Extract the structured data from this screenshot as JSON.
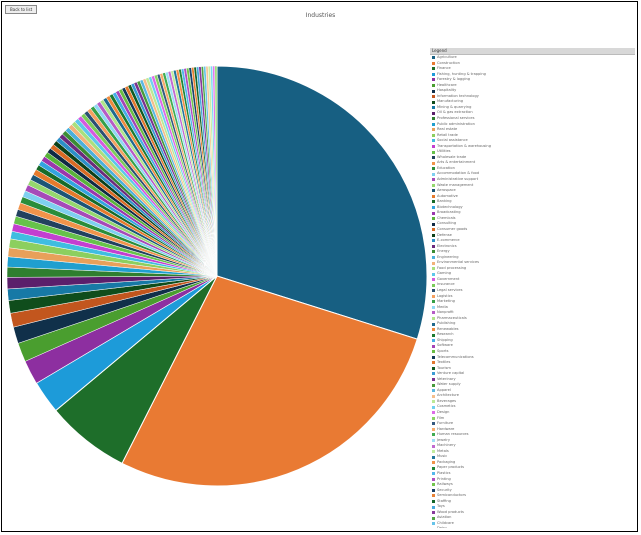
{
  "toolbar": {
    "button_label": "Back to list"
  },
  "chart_data": {
    "type": "pie",
    "title": "Industries",
    "legend_title": "Legend",
    "legend_position": "right",
    "start_angle_deg": 0,
    "direction": "clockwise",
    "series": [
      {
        "label": "Agriculture",
        "value": 30.5,
        "color": "#175f82"
      },
      {
        "label": "Construction",
        "value": 28.2,
        "color": "#e97a33"
      },
      {
        "label": "Finance",
        "value": 6.6,
        "color": "#1e6e2a"
      },
      {
        "label": "Fishing, hunting & trapping",
        "value": 2.6,
        "color": "#1d9bd9"
      },
      {
        "label": "Forestry & logging",
        "value": 1.9,
        "color": "#8d2fa0"
      },
      {
        "label": "Healthcare",
        "value": 1.5,
        "color": "#4a9e2f"
      },
      {
        "label": "Hospitality",
        "value": 1.3,
        "color": "#10304a"
      },
      {
        "label": "Information technology",
        "value": 1.1,
        "color": "#c2561e"
      },
      {
        "label": "Manufacturing",
        "value": 1.0,
        "color": "#0f4d1c"
      },
      {
        "label": "Mining & quarrying",
        "value": 0.9,
        "color": "#1779a6"
      },
      {
        "label": "Oil & gas extraction",
        "value": 0.9,
        "color": "#5b1f6b"
      },
      {
        "label": "Professional services",
        "value": 0.8,
        "color": "#2f7f2f"
      },
      {
        "label": "Public administration",
        "value": 0.8,
        "color": "#1f9fcf"
      },
      {
        "label": "Real estate",
        "value": 0.7,
        "color": "#e8a05a"
      },
      {
        "label": "Retail trade",
        "value": 0.7,
        "color": "#8ccf5f"
      },
      {
        "label": "Social assistance",
        "value": 0.6,
        "color": "#3fbde0"
      },
      {
        "label": "Transportation & warehousing",
        "value": 0.6,
        "color": "#c33fd0"
      },
      {
        "label": "Utilities",
        "value": 0.6,
        "color": "#66c24a"
      },
      {
        "label": "Wholesale trade",
        "value": 0.55,
        "color": "#22415f"
      },
      {
        "label": "Arts & entertainment",
        "value": 0.55,
        "color": "#f0934a"
      },
      {
        "label": "Education",
        "value": 0.5,
        "color": "#2a8d3a"
      },
      {
        "label": "Accommodation & food",
        "value": 0.5,
        "color": "#7ed0f0"
      },
      {
        "label": "Administrative support",
        "value": 0.5,
        "color": "#a64ab8"
      },
      {
        "label": "Waste management",
        "value": 0.45,
        "color": "#95d86e"
      },
      {
        "label": "Aerospace",
        "value": 0.45,
        "color": "#1b5576"
      },
      {
        "label": "Automotive",
        "value": 0.45,
        "color": "#e57a2c"
      },
      {
        "label": "Banking",
        "value": 0.4,
        "color": "#176b29"
      },
      {
        "label": "Biotechnology",
        "value": 0.4,
        "color": "#33a4e0"
      },
      {
        "label": "Broadcasting",
        "value": 0.4,
        "color": "#9b36ad"
      },
      {
        "label": "Chemicals",
        "value": 0.4,
        "color": "#59b33a"
      },
      {
        "label": "Consulting",
        "value": 0.38,
        "color": "#0f2a44"
      },
      {
        "label": "Consumer goods",
        "value": 0.38,
        "color": "#d96a24"
      },
      {
        "label": "Defense",
        "value": 0.36,
        "color": "#0c4018"
      },
      {
        "label": "E-commerce",
        "value": 0.36,
        "color": "#2c90c8"
      },
      {
        "label": "Electronics",
        "value": 0.35,
        "color": "#6b2a7d"
      },
      {
        "label": "Energy",
        "value": 0.35,
        "color": "#3a8c34"
      },
      {
        "label": "Engineering",
        "value": 0.34,
        "color": "#4bb0dc"
      },
      {
        "label": "Environmental services",
        "value": 0.34,
        "color": "#f2b27a"
      },
      {
        "label": "Food processing",
        "value": 0.33,
        "color": "#a8e07e"
      },
      {
        "label": "Gaming",
        "value": 0.33,
        "color": "#5cc8ea"
      },
      {
        "label": "Government",
        "value": 0.32,
        "color": "#d45ae0"
      },
      {
        "label": "Insurance",
        "value": 0.32,
        "color": "#7ccc5a"
      },
      {
        "label": "Legal services",
        "value": 0.31,
        "color": "#2b4f72"
      },
      {
        "label": "Logistics",
        "value": 0.31,
        "color": "#f5a060"
      },
      {
        "label": "Marketing",
        "value": 0.3,
        "color": "#35a047"
      },
      {
        "label": "Media",
        "value": 0.3,
        "color": "#8fd8f4"
      },
      {
        "label": "Nonprofit",
        "value": 0.3,
        "color": "#b65cc6"
      },
      {
        "label": "Pharmaceuticals",
        "value": 0.29,
        "color": "#b0e68a"
      },
      {
        "label": "Publishing",
        "value": 0.29,
        "color": "#1f6a8e"
      },
      {
        "label": "Renewables",
        "value": 0.28,
        "color": "#ee8a3e"
      },
      {
        "label": "Research",
        "value": 0.28,
        "color": "#1c7a30"
      },
      {
        "label": "Shipping",
        "value": 0.28,
        "color": "#45aee6"
      },
      {
        "label": "Software",
        "value": 0.27,
        "color": "#a544b6"
      },
      {
        "label": "Sports",
        "value": 0.27,
        "color": "#6abd44"
      },
      {
        "label": "Telecommunications",
        "value": 0.26,
        "color": "#14385a"
      },
      {
        "label": "Textiles",
        "value": 0.26,
        "color": "#e2772e"
      },
      {
        "label": "Tourism",
        "value": 0.26,
        "color": "#105a22"
      },
      {
        "label": "Venture capital",
        "value": 0.25,
        "color": "#3b9cd4"
      },
      {
        "label": "Veterinary",
        "value": 0.25,
        "color": "#7b3290"
      },
      {
        "label": "Water supply",
        "value": 0.25,
        "color": "#489a3c"
      },
      {
        "label": "Apparel",
        "value": 0.24,
        "color": "#5ab8e2"
      },
      {
        "label": "Architecture",
        "value": 0.24,
        "color": "#f4be8c"
      },
      {
        "label": "Beverages",
        "value": 0.24,
        "color": "#bbe996"
      },
      {
        "label": "Cosmetics",
        "value": 0.23,
        "color": "#6fd0ef"
      },
      {
        "label": "Design",
        "value": 0.23,
        "color": "#dd6ae8"
      },
      {
        "label": "Film",
        "value": 0.23,
        "color": "#88d466"
      },
      {
        "label": "Furniture",
        "value": 0.22,
        "color": "#345a80"
      },
      {
        "label": "Hardware",
        "value": 0.22,
        "color": "#f7ab6c"
      },
      {
        "label": "Human resources",
        "value": 0.22,
        "color": "#40ac52"
      },
      {
        "label": "Jewelry",
        "value": 0.22,
        "color": "#9ddff6"
      },
      {
        "label": "Machinery",
        "value": 0.21,
        "color": "#c16ad0"
      },
      {
        "label": "Metals",
        "value": 0.21,
        "color": "#c2ec9e"
      },
      {
        "label": "Music",
        "value": 0.21,
        "color": "#22769c"
      },
      {
        "label": "Packaging",
        "value": 0.21,
        "color": "#f19248"
      },
      {
        "label": "Paper products",
        "value": 0.2,
        "color": "#208638"
      },
      {
        "label": "Plastics",
        "value": 0.2,
        "color": "#52b8ec"
      },
      {
        "label": "Printing",
        "value": 0.2,
        "color": "#b04ec0"
      },
      {
        "label": "Railways",
        "value": 0.2,
        "color": "#74c64e"
      },
      {
        "label": "Security",
        "value": 0.2,
        "color": "#1a4268"
      },
      {
        "label": "Semiconductors",
        "value": 0.19,
        "color": "#e88236"
      },
      {
        "label": "Staffing",
        "value": 0.19,
        "color": "#136628"
      },
      {
        "label": "Toys",
        "value": 0.19,
        "color": "#48a8dc"
      },
      {
        "label": "Wood products",
        "value": 0.19,
        "color": "#883a9c"
      },
      {
        "label": "Aviation",
        "value": 0.18,
        "color": "#52a646"
      },
      {
        "label": "Childcare",
        "value": 0.18,
        "color": "#66c4ea"
      },
      {
        "label": "Dairy",
        "value": 0.18,
        "color": "#f6c89a"
      },
      {
        "label": "Fitness",
        "value": 0.18,
        "color": "#c8efa6"
      },
      {
        "label": "Glass",
        "value": 0.17,
        "color": "#7cd8f2"
      },
      {
        "label": "Horticulture",
        "value": 0.17,
        "color": "#e478ee"
      },
      {
        "label": "Other",
        "value": 0.17,
        "color": "#94da74"
      }
    ]
  }
}
